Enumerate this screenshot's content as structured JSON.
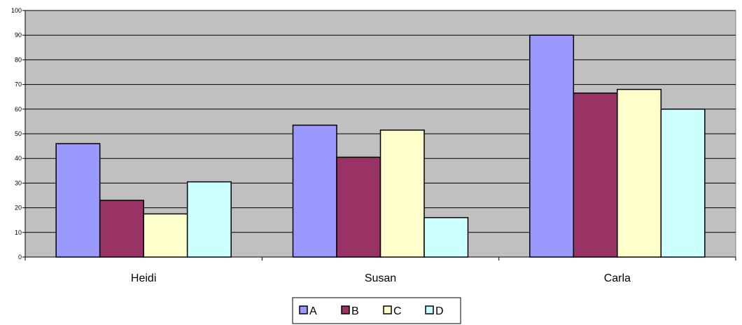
{
  "chart_data": {
    "type": "bar",
    "title": "",
    "xlabel": "",
    "ylabel": "",
    "categories": [
      "Heidi",
      "Susan",
      "Carla"
    ],
    "series": [
      {
        "name": "A",
        "values": [
          46,
          53.5,
          90
        ]
      },
      {
        "name": "B",
        "values": [
          23,
          40.5,
          66.5
        ]
      },
      {
        "name": "C",
        "values": [
          17.5,
          51.5,
          68
        ]
      },
      {
        "name": "D",
        "values": [
          30.5,
          16,
          60
        ]
      }
    ],
    "ylim": [
      0,
      100
    ],
    "yticks": [
      "0",
      "10",
      "20",
      "30",
      "40",
      "50",
      "60",
      "70",
      "80",
      "90",
      "100"
    ],
    "grid": true,
    "legend_position": "bottom-center",
    "colors": {
      "A": "#9999ff",
      "B": "#993366",
      "C": "#ffffcc",
      "D": "#ccffff",
      "plot_background": "#c0c0c0"
    }
  }
}
